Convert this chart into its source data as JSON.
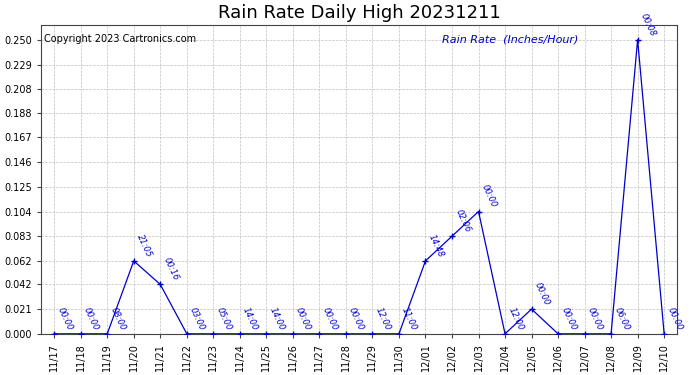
{
  "title": "Rain Rate Daily High 20231211",
  "copyright": "Copyright 2023 Cartronics.com",
  "legend_label": "Rain Rate  (Inches/Hour)",
  "x_labels": [
    "11/17",
    "11/18",
    "11/19",
    "11/20",
    "11/21",
    "11/22",
    "11/23",
    "11/24",
    "11/25",
    "11/26",
    "11/27",
    "11/28",
    "11/29",
    "11/30",
    "12/01",
    "12/02",
    "12/03",
    "12/04",
    "12/05",
    "12/06",
    "12/07",
    "12/08",
    "12/09",
    "12/10"
  ],
  "y_values": [
    0.0,
    0.0,
    0.0,
    0.062,
    0.042,
    0.0,
    0.0,
    0.0,
    0.0,
    0.0,
    0.0,
    0.0,
    0.0,
    0.0,
    0.062,
    0.083,
    0.104,
    0.0,
    0.021,
    0.0,
    0.0,
    0.0,
    0.25,
    0.0
  ],
  "point_labels": [
    "00:00",
    "00:00",
    "08:00",
    "21:05",
    "00:16",
    "03:00",
    "05:00",
    "14:00",
    "14:00",
    "00:00",
    "00:00",
    "00:00",
    "12:00",
    "11:00",
    "14:48",
    "02:06",
    "00:00",
    "12:00",
    "00:00",
    "00:00",
    "00:00",
    "06:00",
    "00:08",
    "00:00"
  ],
  "line_color": "#0000cc",
  "background_color": "#ffffff",
  "grid_color": "#b0b0b0",
  "title_color": "#000000",
  "label_color": "#0000cc",
  "ylim_min": 0.0,
  "ylim_max": 0.2625,
  "y_ticks": [
    0.0,
    0.021,
    0.042,
    0.062,
    0.083,
    0.104,
    0.125,
    0.146,
    0.167,
    0.188,
    0.208,
    0.229,
    0.25
  ],
  "title_fontsize": 13,
  "copyright_fontsize": 7,
  "legend_fontsize": 8,
  "tick_fontsize": 7,
  "label_fontsize": 6
}
